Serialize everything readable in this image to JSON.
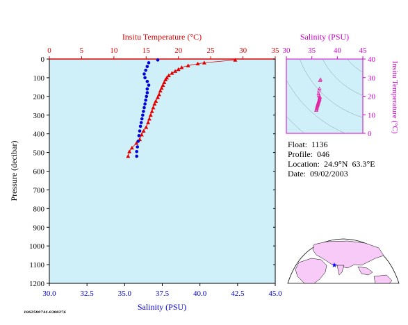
{
  "colors": {
    "plot_bg": "#cff0f9",
    "temperature": "#e00000",
    "salinity": "#0000d8",
    "ts_axis": "#d000d0",
    "ts_points": "#e020a0",
    "map_land": "#f7caf7",
    "map_ocean": "#ffffff",
    "axis_black": "#000000",
    "float_marker": "#0000ff"
  },
  "info": {
    "float": "Float:  1136",
    "profile": "Profile:  046",
    "location": "Location:  24.9°N  63.3°E",
    "date": "Date:  09/02/2003"
  },
  "stamp": "1062589744.0388276",
  "chart_data": [
    {
      "type": "line",
      "title": "",
      "ylabel": "Pressure (decibar)",
      "ylim": [
        1200,
        0
      ],
      "y_ticks": [
        0,
        100,
        200,
        300,
        400,
        500,
        600,
        700,
        800,
        900,
        1000,
        1100,
        1200
      ],
      "x_top_label": "Insitu Temperature (°C)",
      "x_top_lim": [
        0,
        35
      ],
      "x_top_ticks": [
        0,
        5,
        10,
        15,
        20,
        25,
        30,
        35
      ],
      "x_bottom_label": "Salinity (PSU)",
      "x_bottom_lim": [
        30.0,
        45.0
      ],
      "x_bottom_ticks": [
        "30.0",
        "32.5",
        "35.0",
        "37.5",
        "40.0",
        "42.5",
        "45.0"
      ],
      "grid": false,
      "series": [
        {
          "name": "Insitu Temperature",
          "axis": "top",
          "marker": "triangle",
          "points": [
            [
              28.8,
              5
            ],
            [
              24.0,
              20
            ],
            [
              23.0,
              25
            ],
            [
              21.5,
              35
            ],
            [
              20.5,
              45
            ],
            [
              20.0,
              55
            ],
            [
              19.5,
              65
            ],
            [
              19.0,
              75
            ],
            [
              18.5,
              88
            ],
            [
              18.2,
              100
            ],
            [
              18.0,
              110
            ],
            [
              17.8,
              125
            ],
            [
              17.6,
              140
            ],
            [
              17.4,
              155
            ],
            [
              17.2,
              170
            ],
            [
              17.0,
              190
            ],
            [
              16.8,
              205
            ],
            [
              16.5,
              225
            ],
            [
              16.3,
              240
            ],
            [
              16.1,
              260
            ],
            [
              15.9,
              280
            ],
            [
              15.7,
              300
            ],
            [
              15.5,
              320
            ],
            [
              15.3,
              340
            ],
            [
              15.0,
              365
            ],
            [
              14.6,
              385
            ],
            [
              14.3,
              405
            ],
            [
              14.0,
              430
            ],
            [
              13.5,
              450
            ],
            [
              12.8,
              475
            ],
            [
              12.4,
              495
            ],
            [
              12.2,
              520
            ]
          ]
        },
        {
          "name": "Salinity",
          "axis": "bottom",
          "marker": "circle",
          "points": [
            [
              37.2,
              5
            ],
            [
              36.6,
              20
            ],
            [
              36.5,
              40
            ],
            [
              36.4,
              60
            ],
            [
              36.3,
              80
            ],
            [
              36.35,
              100
            ],
            [
              36.5,
              120
            ],
            [
              36.6,
              140
            ],
            [
              36.5,
              160
            ],
            [
              36.5,
              180
            ],
            [
              36.45,
              200
            ],
            [
              36.4,
              220
            ],
            [
              36.35,
              240
            ],
            [
              36.3,
              260
            ],
            [
              36.25,
              280
            ],
            [
              36.2,
              300
            ],
            [
              36.15,
              320
            ],
            [
              36.1,
              340
            ],
            [
              36.05,
              360
            ],
            [
              36.0,
              385
            ],
            [
              35.95,
              410
            ],
            [
              35.9,
              440
            ],
            [
              35.85,
              470
            ],
            [
              35.8,
              495
            ],
            [
              35.8,
              520
            ]
          ]
        }
      ]
    },
    {
      "type": "scatter",
      "title": "",
      "xlabel": "Salinity (PSU)",
      "ylabel": "Insitu Temperature (°C)",
      "xlim": [
        30,
        45
      ],
      "ylim": [
        0,
        40
      ],
      "x_ticks": [
        30,
        35,
        40,
        45
      ],
      "y_ticks": [
        0,
        10,
        20,
        30,
        40
      ],
      "grid": false,
      "points": [
        [
          36.7,
          29.0
        ],
        [
          36.6,
          28.5
        ],
        [
          36.5,
          24.0
        ],
        [
          36.4,
          23.0
        ],
        [
          36.3,
          21.5
        ],
        [
          36.35,
          20.5
        ],
        [
          36.5,
          20.0
        ],
        [
          36.6,
          19.5
        ],
        [
          36.5,
          19.0
        ],
        [
          36.5,
          18.5
        ],
        [
          36.45,
          18.0
        ],
        [
          36.4,
          17.6
        ],
        [
          36.35,
          17.2
        ],
        [
          36.3,
          16.8
        ],
        [
          36.25,
          16.3
        ],
        [
          36.2,
          15.9
        ],
        [
          36.15,
          15.5
        ],
        [
          36.1,
          15.0
        ],
        [
          36.05,
          14.6
        ],
        [
          36.0,
          14.0
        ],
        [
          35.95,
          13.5
        ],
        [
          35.9,
          12.8
        ],
        [
          35.85,
          12.4
        ]
      ]
    }
  ]
}
